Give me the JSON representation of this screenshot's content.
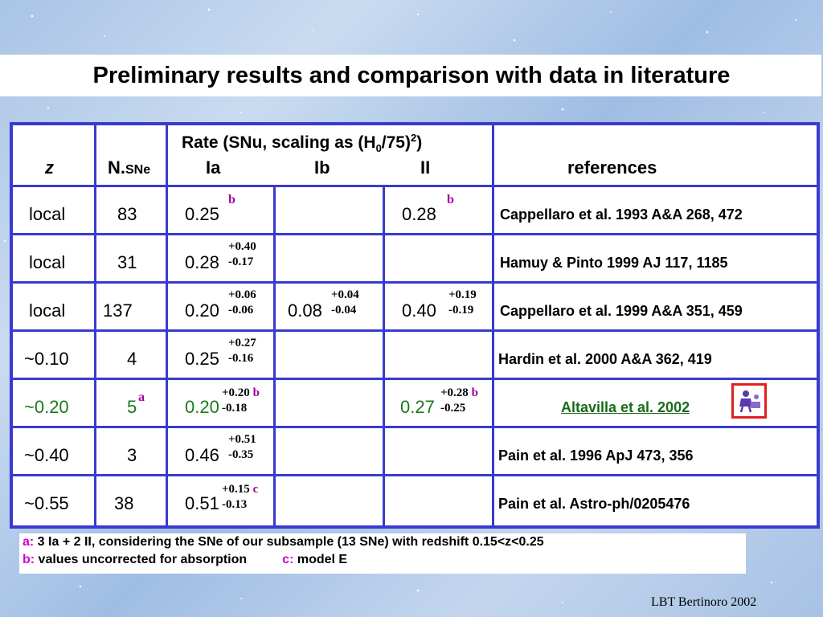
{
  "title": "Preliminary results and comparison with data in literature",
  "header": {
    "z": "z",
    "n": "N.",
    "n_sub": "SNe",
    "rate_label": "Rate (SNu, scaling as (H",
    "rate_sub": "0",
    "rate_mid": "/75)",
    "rate_sup": "2",
    "rate_end": ")",
    "ia": "Ia",
    "ib": "Ib",
    "ii": "II",
    "references": "references"
  },
  "rows": [
    {
      "z": "local",
      "n": "83",
      "ia": "0.25",
      "ia_note": "b",
      "ii": "0.28",
      "ii_note": "b",
      "ref": "Cappellaro et al. 1993 A&A 268, 472"
    },
    {
      "z": "local",
      "n": "31",
      "ia": "0.28",
      "ia_plus": "+0.40",
      "ia_minus": "-0.17",
      "ref": "Hamuy & Pinto 1999 AJ 117, 1185"
    },
    {
      "z": "local",
      "n": "137",
      "ia": "0.20",
      "ia_plus": "+0.06",
      "ia_minus": "-0.06",
      "ib": "0.08",
      "ib_plus": "+0.04",
      "ib_minus": "-0.04",
      "ii": "0.40",
      "ii_plus": "+0.19",
      "ii_minus": "-0.19",
      "ref": "Cappellaro et al. 1999 A&A 351, 459"
    },
    {
      "z": "~0.10",
      "n": "4",
      "ia": "0.25",
      "ia_plus": "+0.27",
      "ia_minus": "-0.16",
      "ref": "Hardin et al. 2000 A&A 362, 419"
    },
    {
      "z": "~0.20",
      "n": "5",
      "n_note": "a",
      "ia": "0.20",
      "ia_plus": "+0.20",
      "ia_note": "b",
      "ia_minus": "-0.18",
      "ii": "0.27",
      "ii_plus": "+0.28",
      "ii_note": "b",
      "ii_minus": "-0.25",
      "ref": "Altavilla et al. 2002"
    },
    {
      "z": "~0.40",
      "n": "3",
      "ia": "0.46",
      "ia_plus": "+0.51",
      "ia_minus": "-0.35",
      "ref": "Pain et al. 1996 ApJ 473, 356"
    },
    {
      "z": "~0.55",
      "n": "38",
      "ia": "0.51",
      "ia_plus": "+0.15",
      "ia_note": "c",
      "ia_minus": "-0.13",
      "ref": "Pain et al. Astro-ph/0205476"
    }
  ],
  "notes": {
    "a_key": "a:",
    "a_text": " 3 Ia + 2 II, considering the SNe of our subsample (13 SNe) with redshift 0.15<z<0.25",
    "b_key": "b:",
    "b_text": "  values uncorrected for absorption",
    "c_key": "c:",
    "c_text": " model E"
  },
  "footer": "LBT Bertinoro 2002",
  "colors": {
    "border": "#3a3ad0",
    "highlight": "#1a7a1a",
    "note": "#a000a0",
    "note_key": "#d000d0",
    "icon_frame": "#e02020"
  },
  "icon": "scientist-icon"
}
